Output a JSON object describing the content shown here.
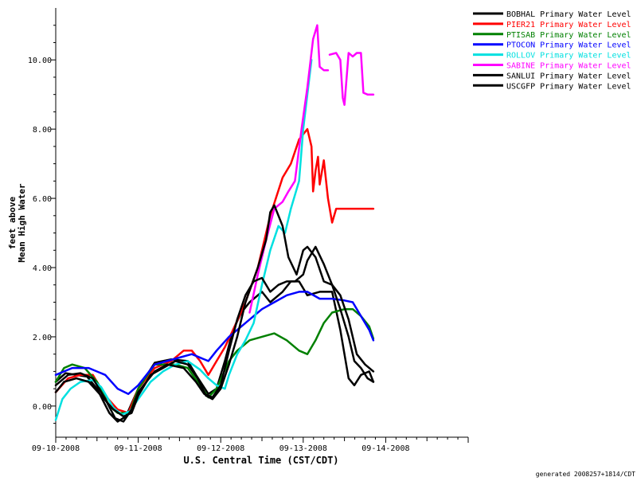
{
  "chart_data": {
    "type": "line",
    "title": "",
    "xlabel": "U.S. Central Time (CST/CDT)",
    "ylabel_lines": [
      "feet above",
      "Mean High Water"
    ],
    "ylim": [
      -0.9,
      11.5
    ],
    "yticks": [
      0,
      2,
      4,
      6,
      8,
      10
    ],
    "ytick_labels": [
      "0.00",
      "2.00",
      "4.00",
      "6.00",
      "8.00",
      "10.00"
    ],
    "xlim_days": [
      0,
      5
    ],
    "xticks": [
      0,
      1,
      2,
      3,
      4
    ],
    "xtick_labels": [
      "09-10-2008",
      "09-11-2008",
      "09-12-2008",
      "09-13-2008",
      "09-14-2008"
    ],
    "grid": false,
    "legend_position": "top-right",
    "footer": "generated 2008257+1814/CDT",
    "series": [
      {
        "name": "BOBHAL Primary Water Level",
        "color": "#000000",
        "points": [
          [
            0.0,
            0.7
          ],
          [
            0.12,
            0.95
          ],
          [
            0.25,
            0.9
          ],
          [
            0.38,
            0.85
          ],
          [
            0.5,
            0.5
          ],
          [
            0.65,
            -0.2
          ],
          [
            0.75,
            -0.45
          ],
          [
            0.85,
            -0.3
          ],
          [
            1.0,
            0.5
          ],
          [
            1.2,
            1.25
          ],
          [
            1.4,
            1.35
          ],
          [
            1.6,
            1.3
          ],
          [
            1.7,
            0.9
          ],
          [
            1.85,
            0.35
          ],
          [
            1.95,
            0.5
          ],
          [
            2.05,
            1.3
          ],
          [
            2.15,
            2.2
          ],
          [
            2.25,
            2.7
          ],
          [
            2.35,
            3.0
          ],
          [
            2.5,
            3.3
          ],
          [
            2.6,
            3.0
          ],
          [
            2.75,
            3.3
          ],
          [
            2.85,
            3.6
          ],
          [
            2.95,
            3.6
          ],
          [
            3.05,
            3.2
          ],
          [
            3.2,
            3.3
          ],
          [
            3.35,
            3.3
          ],
          [
            3.45,
            2.2
          ],
          [
            3.55,
            0.8
          ],
          [
            3.62,
            0.6
          ],
          [
            3.7,
            0.9
          ],
          [
            3.8,
            1.0
          ],
          [
            3.85,
            0.7
          ]
        ]
      },
      {
        "name": "PIER21 Primary Water Level",
        "color": "#ff0000",
        "points": [
          [
            0.0,
            0.4
          ],
          [
            0.15,
            0.8
          ],
          [
            0.3,
            0.9
          ],
          [
            0.45,
            0.9
          ],
          [
            0.6,
            0.3
          ],
          [
            0.75,
            -0.1
          ],
          [
            0.88,
            -0.2
          ],
          [
            1.0,
            0.5
          ],
          [
            1.2,
            1.1
          ],
          [
            1.4,
            1.3
          ],
          [
            1.55,
            1.6
          ],
          [
            1.65,
            1.6
          ],
          [
            1.75,
            1.3
          ],
          [
            1.85,
            0.9
          ],
          [
            1.95,
            1.3
          ],
          [
            2.05,
            1.7
          ],
          [
            2.15,
            2.2
          ],
          [
            2.3,
            3.0
          ],
          [
            2.45,
            4.0
          ],
          [
            2.6,
            5.5
          ],
          [
            2.75,
            6.6
          ],
          [
            2.85,
            7.0
          ],
          [
            2.95,
            7.7
          ],
          [
            3.05,
            8.0
          ],
          [
            3.1,
            7.5
          ],
          [
            3.12,
            6.2
          ],
          [
            3.15,
            6.8
          ],
          [
            3.18,
            7.2
          ],
          [
            3.2,
            6.4
          ],
          [
            3.25,
            7.1
          ],
          [
            3.3,
            6.0
          ],
          [
            3.35,
            5.3
          ],
          [
            3.4,
            5.7
          ],
          [
            3.85,
            5.7
          ]
        ]
      },
      {
        "name": "PTISAB Primary Water Level",
        "color": "#008000",
        "points": [
          [
            0.0,
            0.7
          ],
          [
            0.1,
            1.1
          ],
          [
            0.2,
            1.2
          ],
          [
            0.35,
            1.1
          ],
          [
            0.5,
            0.7
          ],
          [
            0.65,
            0.0
          ],
          [
            0.75,
            -0.2
          ],
          [
            0.9,
            -0.2
          ],
          [
            1.0,
            0.5
          ],
          [
            1.2,
            1.2
          ],
          [
            1.45,
            1.2
          ],
          [
            1.6,
            1.1
          ],
          [
            1.75,
            0.6
          ],
          [
            1.85,
            0.25
          ],
          [
            1.95,
            0.5
          ],
          [
            2.1,
            1.3
          ],
          [
            2.2,
            1.6
          ],
          [
            2.35,
            1.9
          ],
          [
            2.5,
            2.0
          ],
          [
            2.65,
            2.1
          ],
          [
            2.8,
            1.9
          ],
          [
            2.95,
            1.6
          ],
          [
            3.05,
            1.5
          ],
          [
            3.15,
            1.9
          ],
          [
            3.25,
            2.4
          ],
          [
            3.35,
            2.7
          ],
          [
            3.5,
            2.8
          ],
          [
            3.6,
            2.8
          ],
          [
            3.7,
            2.6
          ],
          [
            3.8,
            2.3
          ],
          [
            3.85,
            1.95
          ]
        ]
      },
      {
        "name": "PTOCON Primary Water Level",
        "color": "#0000ff",
        "points": [
          [
            0.0,
            0.9
          ],
          [
            0.2,
            1.1
          ],
          [
            0.4,
            1.1
          ],
          [
            0.6,
            0.9
          ],
          [
            0.75,
            0.5
          ],
          [
            0.88,
            0.35
          ],
          [
            1.0,
            0.6
          ],
          [
            1.2,
            1.2
          ],
          [
            1.5,
            1.4
          ],
          [
            1.65,
            1.5
          ],
          [
            1.85,
            1.3
          ],
          [
            1.95,
            1.6
          ],
          [
            2.1,
            2.0
          ],
          [
            2.25,
            2.3
          ],
          [
            2.35,
            2.5
          ],
          [
            2.5,
            2.8
          ],
          [
            2.65,
            3.0
          ],
          [
            2.8,
            3.2
          ],
          [
            2.95,
            3.3
          ],
          [
            3.05,
            3.3
          ],
          [
            3.2,
            3.1
          ],
          [
            3.35,
            3.1
          ],
          [
            3.5,
            3.05
          ],
          [
            3.6,
            3.0
          ],
          [
            3.7,
            2.6
          ],
          [
            3.8,
            2.2
          ],
          [
            3.85,
            1.9
          ]
        ]
      },
      {
        "name": "ROLLOV Primary Water Level",
        "color": "#00e0e0",
        "points": [
          [
            0.0,
            -0.4
          ],
          [
            0.08,
            0.2
          ],
          [
            0.18,
            0.5
          ],
          [
            0.3,
            0.7
          ],
          [
            0.45,
            0.75
          ],
          [
            0.55,
            0.55
          ],
          [
            0.7,
            -0.05
          ],
          [
            0.8,
            -0.25
          ],
          [
            0.9,
            -0.15
          ],
          [
            1.0,
            0.2
          ],
          [
            1.15,
            0.7
          ],
          [
            1.3,
            1.0
          ],
          [
            1.45,
            1.2
          ],
          [
            1.6,
            1.3
          ],
          [
            1.75,
            1.05
          ],
          [
            1.85,
            0.8
          ],
          [
            1.95,
            0.6
          ],
          [
            2.05,
            0.5
          ],
          [
            2.1,
            0.9
          ],
          [
            2.2,
            1.5
          ],
          [
            2.3,
            1.9
          ],
          [
            2.4,
            2.4
          ],
          [
            2.5,
            3.5
          ],
          [
            2.6,
            4.5
          ],
          [
            2.7,
            5.2
          ],
          [
            2.78,
            5.0
          ],
          [
            2.85,
            5.7
          ],
          [
            2.95,
            6.5
          ],
          [
            3.0,
            8.0
          ],
          [
            3.05,
            9.0
          ],
          [
            3.1,
            10.0
          ]
        ]
      },
      {
        "name": "SABINE Primary Water Level",
        "color": "#ff00ff",
        "points": [
          [
            2.35,
            2.7
          ],
          [
            2.45,
            3.8
          ],
          [
            2.55,
            4.8
          ],
          [
            2.65,
            5.7
          ],
          [
            2.75,
            5.9
          ],
          [
            2.82,
            6.2
          ],
          [
            2.9,
            6.5
          ],
          [
            2.98,
            8.0
          ],
          [
            3.05,
            9.2
          ],
          [
            3.12,
            10.6
          ],
          [
            3.17,
            11.0
          ],
          [
            3.2,
            9.8
          ],
          [
            3.25,
            9.7
          ],
          [
            3.3,
            9.7
          ]
        ],
        "points_b": [
          [
            3.32,
            10.15
          ],
          [
            3.4,
            10.2
          ],
          [
            3.45,
            10.0
          ],
          [
            3.48,
            8.9
          ],
          [
            3.5,
            8.7
          ],
          [
            3.55,
            10.2
          ],
          [
            3.6,
            10.1
          ],
          [
            3.65,
            10.2
          ],
          [
            3.7,
            10.2
          ],
          [
            3.73,
            9.05
          ],
          [
            3.78,
            9.0
          ],
          [
            3.85,
            9.0
          ]
        ]
      },
      {
        "name": "SANLUI Primary Water Level",
        "color": "#000000",
        "points": [
          [
            0.0,
            0.4
          ],
          [
            0.1,
            0.7
          ],
          [
            0.25,
            0.8
          ],
          [
            0.4,
            0.7
          ],
          [
            0.55,
            0.3
          ],
          [
            0.7,
            -0.1
          ],
          [
            0.82,
            -0.3
          ],
          [
            0.92,
            -0.2
          ],
          [
            1.0,
            0.3
          ],
          [
            1.15,
            0.9
          ],
          [
            1.3,
            1.1
          ],
          [
            1.45,
            1.3
          ],
          [
            1.6,
            1.2
          ],
          [
            1.72,
            0.8
          ],
          [
            1.82,
            0.3
          ],
          [
            1.9,
            0.2
          ],
          [
            2.0,
            0.5
          ],
          [
            2.1,
            1.2
          ],
          [
            2.2,
            2.0
          ],
          [
            2.3,
            3.0
          ],
          [
            2.45,
            4.0
          ],
          [
            2.55,
            4.8
          ],
          [
            2.6,
            5.6
          ],
          [
            2.65,
            5.8
          ],
          [
            2.75,
            5.2
          ],
          [
            2.82,
            4.3
          ],
          [
            2.92,
            3.8
          ],
          [
            3.0,
            4.5
          ],
          [
            3.05,
            4.6
          ],
          [
            3.15,
            4.3
          ],
          [
            3.25,
            3.6
          ],
          [
            3.35,
            3.5
          ],
          [
            3.45,
            3.2
          ],
          [
            3.55,
            2.5
          ],
          [
            3.65,
            1.5
          ],
          [
            3.75,
            1.2
          ],
          [
            3.85,
            1.0
          ]
        ]
      },
      {
        "name": "USCGFP Primary Water Level",
        "color": "#000000",
        "points": [
          [
            0.0,
            0.6
          ],
          [
            0.15,
            0.9
          ],
          [
            0.3,
            0.95
          ],
          [
            0.45,
            0.8
          ],
          [
            0.6,
            0.2
          ],
          [
            0.72,
            -0.35
          ],
          [
            0.82,
            -0.45
          ],
          [
            0.92,
            -0.1
          ],
          [
            1.0,
            0.4
          ],
          [
            1.2,
            1.0
          ],
          [
            1.35,
            1.2
          ],
          [
            1.55,
            1.1
          ],
          [
            1.7,
            0.7
          ],
          [
            1.8,
            0.35
          ],
          [
            1.9,
            0.25
          ],
          [
            2.0,
            0.6
          ],
          [
            2.1,
            1.6
          ],
          [
            2.2,
            2.5
          ],
          [
            2.3,
            3.2
          ],
          [
            2.4,
            3.6
          ],
          [
            2.5,
            3.7
          ],
          [
            2.6,
            3.3
          ],
          [
            2.7,
            3.5
          ],
          [
            2.8,
            3.6
          ],
          [
            2.9,
            3.6
          ],
          [
            3.0,
            3.8
          ],
          [
            3.05,
            4.2
          ],
          [
            3.15,
            4.6
          ],
          [
            3.25,
            4.1
          ],
          [
            3.35,
            3.5
          ],
          [
            3.45,
            2.8
          ],
          [
            3.55,
            2.0
          ],
          [
            3.62,
            1.3
          ],
          [
            3.7,
            1.1
          ],
          [
            3.78,
            0.8
          ],
          [
            3.85,
            0.7
          ]
        ]
      }
    ]
  }
}
